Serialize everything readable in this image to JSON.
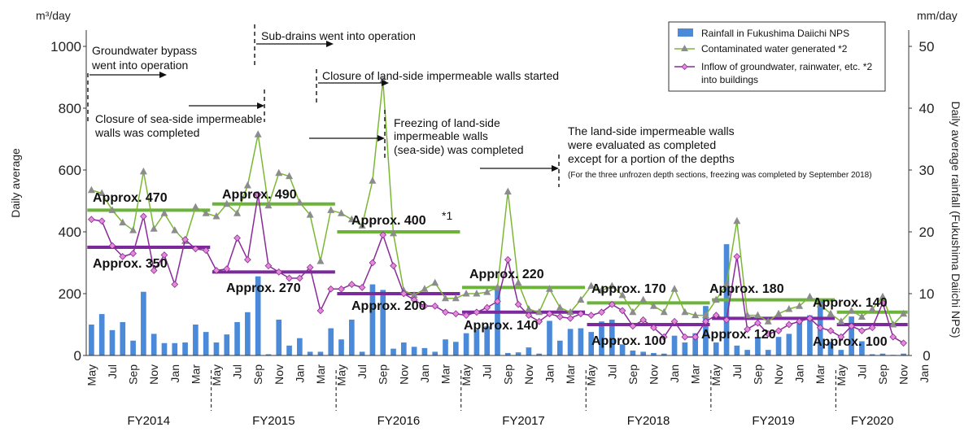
{
  "chart_data": {
    "type": "bar",
    "left_axis": {
      "unit": "m³/day",
      "label": "Daily average",
      "ylim": [
        0,
        1000
      ],
      "ticks": [
        "0",
        "200",
        "400",
        "600",
        "800",
        "1000"
      ]
    },
    "right_axis": {
      "unit": "mm/day",
      "label": "Daily average rainfall (Fukushima Daiichi NPS)",
      "ylim": [
        0,
        50
      ],
      "ticks": [
        "0",
        "10",
        "20",
        "30",
        "40",
        "50"
      ]
    },
    "x_tick_labels": [
      "May",
      "Jul",
      "Sep",
      "Nov",
      "Jan",
      "Mar",
      "May",
      "Jul",
      "Sep",
      "Nov",
      "Jan",
      "Mar",
      "May",
      "Jul",
      "Sep",
      "Nov",
      "Jan",
      "Mar",
      "May",
      "Jul",
      "Sep",
      "Nov",
      "Jan",
      "Mar",
      "May",
      "Jul",
      "Sep",
      "Nov",
      "Jan",
      "Mar",
      "May",
      "Jul",
      "Sep",
      "Nov",
      "Jan",
      "Mar",
      "May",
      "Jul",
      "Sep",
      "Nov",
      "Jan"
    ],
    "fiscal_years": [
      "FY2014",
      "FY2015",
      "FY2016",
      "FY2017",
      "FY2018",
      "FY2019",
      "FY2020"
    ],
    "legend": [
      {
        "name": "Rainfall in Fukushima Daiichi NPS",
        "color": "#4a8ad8",
        "kind": "bar"
      },
      {
        "name": "Contaminated water generated *2",
        "color": "#7ab834",
        "kind": "line-triangle"
      },
      {
        "name": "Inflow of groundwater, rainwater, etc. *2",
        "name2": "into buildings",
        "color": "#8a2a9a",
        "kind": "line-diamond"
      }
    ],
    "legend_position": "top-right",
    "rainfall": [
      5,
      6.7,
      4.1,
      5.4,
      2.4,
      10.3,
      3.5,
      2,
      2,
      2.1,
      5,
      3.8,
      2.1,
      3.4,
      5.4,
      7,
      12.8,
      0.2,
      5.8,
      1.6,
      2.8,
      0.6,
      0.6,
      4.4,
      2.6,
      5.8,
      0.6,
      11.5,
      10.6,
      1.1,
      2.1,
      1.4,
      1.2,
      0.6,
      2.6,
      2.2,
      3.6,
      4.2,
      4.7,
      10.7,
      0.4,
      0.5,
      1.3,
      0.3,
      5.6,
      2.4,
      4.3,
      4.4,
      3.8,
      5.5,
      5.8,
      1.8,
      0.8,
      0.6,
      0.4,
      0.3,
      3.2,
      2.1,
      3.6,
      8,
      2.1,
      18,
      1.6,
      0.9,
      2.8,
      0.9,
      3,
      3.5,
      5.5,
      6.5,
      9,
      2.2,
      0.9,
      6.3,
      2.3,
      0.2,
      0.3,
      0.1,
      0.3
    ],
    "contaminated": [
      535,
      525,
      470,
      430,
      405,
      595,
      410,
      460,
      405,
      370,
      480,
      460,
      450,
      490,
      460,
      550,
      715,
      485,
      590,
      580,
      495,
      455,
      305,
      470,
      460,
      440,
      420,
      565,
      890,
      395,
      210,
      195,
      215,
      235,
      185,
      185,
      200,
      200,
      205,
      220,
      530,
      235,
      150,
      140,
      215,
      155,
      140,
      180,
      225,
      210,
      225,
      195,
      140,
      180,
      160,
      140,
      215,
      140,
      130,
      130,
      180,
      230,
      435,
      130,
      130,
      110,
      135,
      150,
      160,
      190,
      165,
      135,
      110,
      145,
      125,
      150,
      190,
      100,
      135
    ],
    "inflow": [
      440,
      435,
      355,
      320,
      330,
      450,
      275,
      325,
      230,
      375,
      345,
      340,
      275,
      280,
      380,
      310,
      520,
      290,
      270,
      250,
      250,
      285,
      145,
      215,
      215,
      230,
      220,
      300,
      390,
      290,
      200,
      180,
      160,
      160,
      140,
      135,
      130,
      140,
      155,
      175,
      310,
      165,
      130,
      110,
      135,
      125,
      120,
      135,
      130,
      140,
      165,
      145,
      95,
      115,
      90,
      60,
      110,
      60,
      60,
      110,
      130,
      115,
      320,
      85,
      105,
      70,
      80,
      100,
      110,
      120,
      90,
      80,
      60,
      95,
      80,
      90,
      170,
      60,
      40
    ],
    "averages": [
      {
        "label": "Approx. 470",
        "value": 470,
        "series": "contaminated",
        "from": 0,
        "to": 11
      },
      {
        "label": "Approx. 350",
        "value": 350,
        "series": "inflow",
        "from": 0,
        "to": 11
      },
      {
        "label": "Approx. 490",
        "value": 490,
        "series": "contaminated",
        "from": 12,
        "to": 23
      },
      {
        "label": "Approx. 270",
        "value": 270,
        "series": "inflow",
        "from": 12,
        "to": 23
      },
      {
        "label": "Approx. 400",
        "value": 400,
        "series": "contaminated",
        "from": 24,
        "to": 35,
        "note": "*1"
      },
      {
        "label": "Approx. 200",
        "value": 200,
        "series": "inflow",
        "from": 24,
        "to": 35
      },
      {
        "label": "Approx. 220",
        "value": 220,
        "series": "contaminated",
        "from": 36,
        "to": 47
      },
      {
        "label": "Approx. 140",
        "value": 140,
        "series": "inflow",
        "from": 36,
        "to": 47
      },
      {
        "label": "Approx. 170",
        "value": 170,
        "series": "contaminated",
        "from": 48,
        "to": 59
      },
      {
        "label": "Approx. 100",
        "value": 100,
        "series": "inflow",
        "from": 48,
        "to": 59
      },
      {
        "label": "Approx. 180",
        "value": 180,
        "series": "contaminated",
        "from": 60,
        "to": 71
      },
      {
        "label": "Approx. 120",
        "value": 120,
        "series": "inflow",
        "from": 60,
        "to": 71
      },
      {
        "label": "Approx. 140",
        "value": 140,
        "series": "contaminated",
        "from": 72,
        "to": 78
      },
      {
        "label": "Approx. 100",
        "value": 100,
        "series": "inflow",
        "from": 72,
        "to": 78
      }
    ],
    "annotations": [
      {
        "lines": [
          "Groundwater bypass",
          "went into operation"
        ]
      },
      {
        "lines": [
          "Sub-drains went into operation"
        ]
      },
      {
        "lines": [
          "Closure of land-side impermeable walls started"
        ]
      },
      {
        "lines": [
          "Closure of sea-side impermeable",
          "walls was completed"
        ]
      },
      {
        "lines": [
          "Freezing of land-side",
          "impermeable walls",
          "(sea-side) was completed"
        ]
      },
      {
        "lines": [
          "The land-side impermeable walls",
          "were evaluated as completed",
          "except for a portion of the depths"
        ],
        "footnote": "(For the three unfrozen depth sections, freezing was completed by September 2018)"
      }
    ]
  }
}
